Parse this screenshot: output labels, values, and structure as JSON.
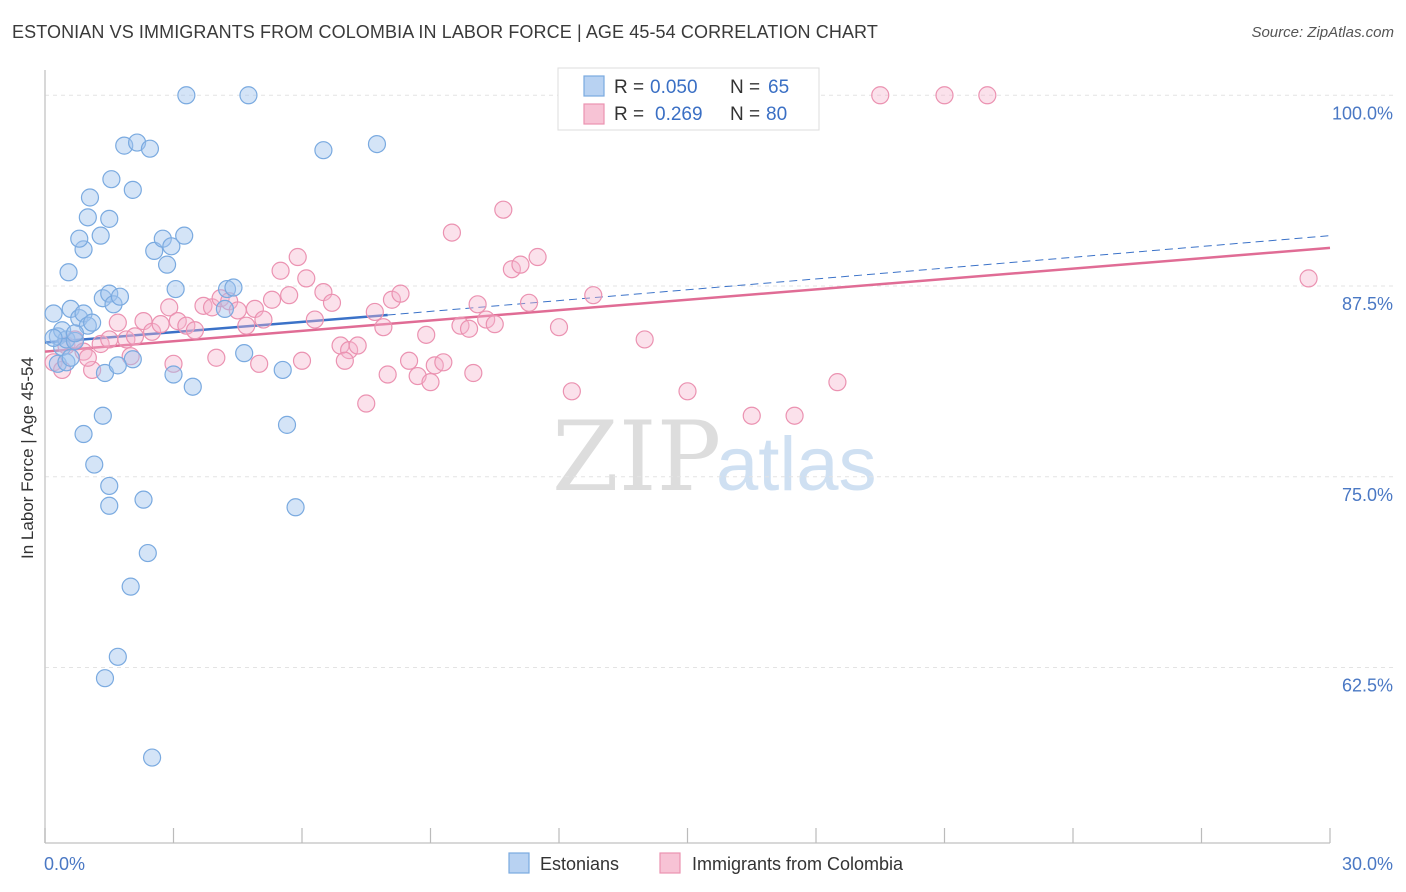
{
  "chart_data": {
    "type": "scatter",
    "title": "ESTONIAN VS IMMIGRANTS FROM COLOMBIA IN LABOR FORCE | AGE 45-54 CORRELATION CHART",
    "source": "Source: ZipAtlas.com",
    "ylabel": "In Labor Force | Age 45-54",
    "xlabel": "",
    "xlim": [
      0,
      30
    ],
    "ylim": [
      51,
      101
    ],
    "x_tick_labels": {
      "min": "0.0%",
      "max": "30.0%"
    },
    "y_ticks": [
      {
        "value": 100.0,
        "label": "100.0%"
      },
      {
        "value": 87.5,
        "label": "87.5%"
      },
      {
        "value": 75.0,
        "label": "75.0%"
      },
      {
        "value": 62.5,
        "label": "62.5%"
      }
    ],
    "watermark": {
      "part1": "ZIP",
      "part2": "atlas"
    },
    "legend": {
      "r_label": "R =",
      "n_label": "N =",
      "entries": [
        {
          "r": "0.050",
          "n": "65"
        },
        {
          "r": "0.269",
          "n": "80"
        }
      ]
    },
    "series": [
      {
        "name": "Estonians",
        "color": "#7aaae0",
        "fill": "rgba(160,196,238,0.45)",
        "trend": {
          "x0": 0.0,
          "y0": 83.8,
          "x1": 8.0,
          "y1": 85.6,
          "color": "#3b72c8",
          "dash_to_x": 30.0,
          "dash_to_y": 90.8
        },
        "points": [
          [
            0.2,
            85.7
          ],
          [
            0.3,
            84.2
          ],
          [
            0.4,
            83.5
          ],
          [
            0.5,
            84.0
          ],
          [
            0.6,
            86.0
          ],
          [
            0.7,
            83.9
          ],
          [
            0.8,
            85.4
          ],
          [
            0.9,
            85.7
          ],
          [
            1.0,
            84.9
          ],
          [
            1.1,
            85.1
          ],
          [
            0.3,
            82.4
          ],
          [
            0.5,
            82.5
          ],
          [
            0.6,
            82.8
          ],
          [
            0.4,
            84.6
          ],
          [
            0.7,
            84.4
          ],
          [
            0.2,
            84.1
          ],
          [
            0.55,
            88.4
          ],
          [
            0.9,
            89.9
          ],
          [
            0.8,
            90.6
          ],
          [
            1.3,
            90.8
          ],
          [
            1.0,
            92.0
          ],
          [
            1.05,
            93.3
          ],
          [
            1.55,
            94.5
          ],
          [
            1.85,
            96.7
          ],
          [
            1.5,
            91.9
          ],
          [
            2.05,
            93.8
          ],
          [
            2.15,
            96.9
          ],
          [
            2.45,
            96.5
          ],
          [
            2.55,
            89.8
          ],
          [
            2.75,
            90.6
          ],
          [
            2.95,
            90.1
          ],
          [
            2.85,
            88.9
          ],
          [
            3.05,
            87.3
          ],
          [
            3.25,
            90.8
          ],
          [
            3.0,
            81.7
          ],
          [
            3.45,
            80.9
          ],
          [
            4.2,
            86.0
          ],
          [
            4.25,
            87.3
          ],
          [
            4.65,
            83.1
          ],
          [
            4.4,
            87.4
          ],
          [
            1.35,
            86.7
          ],
          [
            1.5,
            87.0
          ],
          [
            1.6,
            86.3
          ],
          [
            1.75,
            86.8
          ],
          [
            2.05,
            82.7
          ],
          [
            1.4,
            81.8
          ],
          [
            1.35,
            79.0
          ],
          [
            1.7,
            82.3
          ],
          [
            0.9,
            77.8
          ],
          [
            1.15,
            75.8
          ],
          [
            1.5,
            74.4
          ],
          [
            1.5,
            73.1
          ],
          [
            2.3,
            73.5
          ],
          [
            2.4,
            70.0
          ],
          [
            2.0,
            67.8
          ],
          [
            1.7,
            63.2
          ],
          [
            1.4,
            61.8
          ],
          [
            5.55,
            82.0
          ],
          [
            5.65,
            78.4
          ],
          [
            5.85,
            73.0
          ],
          [
            3.3,
            100.0
          ],
          [
            4.75,
            100.0
          ],
          [
            6.5,
            96.4
          ],
          [
            7.75,
            96.8
          ],
          [
            2.5,
            56.6
          ]
        ]
      },
      {
        "name": "Immigrants from Colombia",
        "color": "#eb92b1",
        "fill": "rgba(244,180,204,0.40)",
        "trend": {
          "x0": 0.0,
          "y0": 83.2,
          "x1": 30.0,
          "y1": 90.0,
          "color": "#e06c95"
        },
        "points": [
          [
            0.2,
            82.5
          ],
          [
            0.5,
            83.6
          ],
          [
            0.7,
            84.0
          ],
          [
            0.9,
            83.2
          ],
          [
            1.1,
            82.0
          ],
          [
            1.3,
            83.7
          ],
          [
            1.5,
            84.0
          ],
          [
            1.7,
            85.1
          ],
          [
            1.9,
            84.0
          ],
          [
            2.1,
            84.2
          ],
          [
            2.3,
            85.2
          ],
          [
            2.5,
            84.5
          ],
          [
            2.7,
            85.0
          ],
          [
            2.9,
            86.1
          ],
          [
            3.1,
            85.2
          ],
          [
            3.3,
            84.9
          ],
          [
            3.5,
            84.6
          ],
          [
            3.7,
            86.2
          ],
          [
            3.9,
            86.1
          ],
          [
            4.1,
            86.7
          ],
          [
            4.3,
            86.5
          ],
          [
            4.5,
            85.9
          ],
          [
            4.7,
            84.9
          ],
          [
            4.9,
            86.0
          ],
          [
            5.1,
            85.3
          ],
          [
            5.3,
            86.6
          ],
          [
            5.5,
            88.5
          ],
          [
            5.7,
            86.9
          ],
          [
            5.9,
            89.4
          ],
          [
            6.1,
            88.0
          ],
          [
            6.3,
            85.3
          ],
          [
            6.5,
            87.1
          ],
          [
            6.7,
            86.4
          ],
          [
            6.9,
            83.6
          ],
          [
            7.1,
            83.3
          ],
          [
            7.3,
            83.6
          ],
          [
            7.5,
            79.8
          ],
          [
            7.7,
            85.8
          ],
          [
            7.9,
            84.8
          ],
          [
            8.1,
            86.6
          ],
          [
            8.3,
            87.0
          ],
          [
            8.5,
            82.6
          ],
          [
            8.7,
            81.6
          ],
          [
            8.9,
            84.3
          ],
          [
            9.1,
            82.3
          ],
          [
            9.3,
            82.5
          ],
          [
            9.5,
            91.0
          ],
          [
            9.7,
            84.9
          ],
          [
            9.9,
            84.7
          ],
          [
            10.1,
            86.3
          ],
          [
            10.3,
            85.3
          ],
          [
            10.5,
            85.0
          ],
          [
            10.7,
            92.5
          ],
          [
            10.9,
            88.6
          ],
          [
            11.1,
            88.9
          ],
          [
            11.3,
            86.4
          ],
          [
            11.5,
            89.4
          ],
          [
            12.0,
            84.8
          ],
          [
            12.8,
            86.9
          ],
          [
            14.0,
            84.0
          ],
          [
            0.4,
            82.0
          ],
          [
            1.0,
            82.8
          ],
          [
            2.0,
            82.9
          ],
          [
            3.0,
            82.4
          ],
          [
            4.0,
            82.8
          ],
          [
            5.0,
            82.4
          ],
          [
            6.0,
            82.6
          ],
          [
            7.0,
            82.6
          ],
          [
            8.0,
            81.7
          ],
          [
            9.0,
            81.2
          ],
          [
            10.0,
            81.8
          ],
          [
            12.3,
            80.6
          ],
          [
            15.0,
            80.6
          ],
          [
            16.5,
            79.0
          ],
          [
            17.5,
            79.0
          ],
          [
            18.5,
            81.2
          ],
          [
            19.5,
            100.0
          ],
          [
            21.0,
            100.0
          ],
          [
            22.0,
            100.0
          ],
          [
            29.5,
            88.0
          ]
        ]
      }
    ]
  }
}
